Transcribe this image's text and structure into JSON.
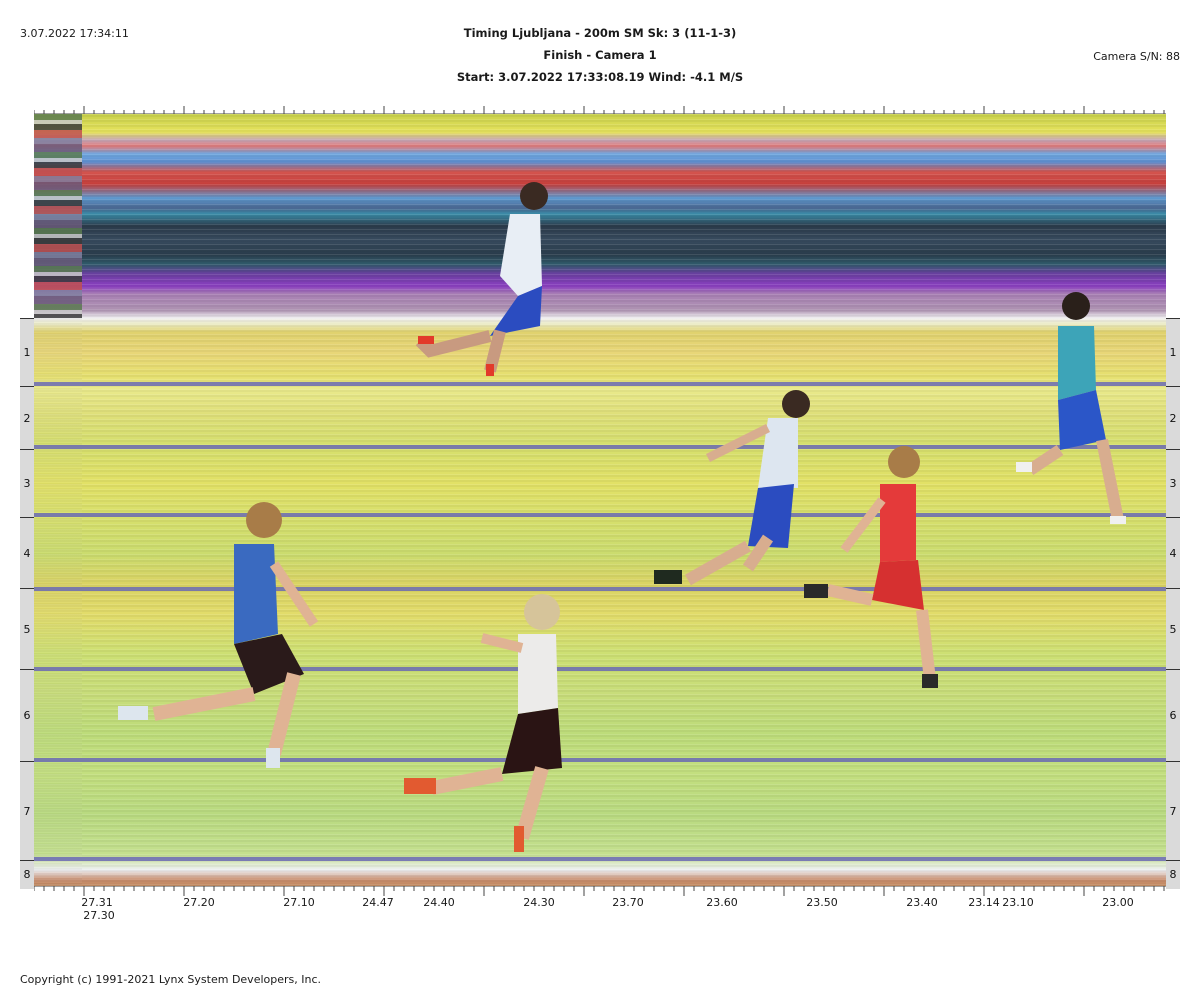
{
  "header": {
    "datetime": "3.07.2022 17:34:11",
    "title_line1": "Timing Ljubljana - 200m SM   Sk: 3 (11-1-3)",
    "title_line2": "Finish - Camera 1",
    "title_line3": "Start: 3.07.2022 17:33:08.19    Wind: -4.1 M/S",
    "camera_sn": "Camera S/N: 88"
  },
  "lanes": [
    {
      "label": "1"
    },
    {
      "label": "2"
    },
    {
      "label": "3"
    },
    {
      "label": "4"
    },
    {
      "label": "5"
    },
    {
      "label": "6"
    },
    {
      "label": "7"
    },
    {
      "label": "8"
    }
  ],
  "time_axis": {
    "labels": [
      "27.31",
      "27.20",
      "27.10",
      "24.47",
      "24.40",
      "24.30",
      "23.70",
      "23.60",
      "23.50",
      "23.40",
      "23.14",
      "23.10",
      "23.00"
    ],
    "secondary_label": "27.30"
  },
  "footer": {
    "copyright": "Copyright (c) 1991-2021 Lynx System Developers, Inc."
  },
  "colors": {
    "lane_line": "#6a6ab4",
    "lane_cell": "#dadada"
  }
}
